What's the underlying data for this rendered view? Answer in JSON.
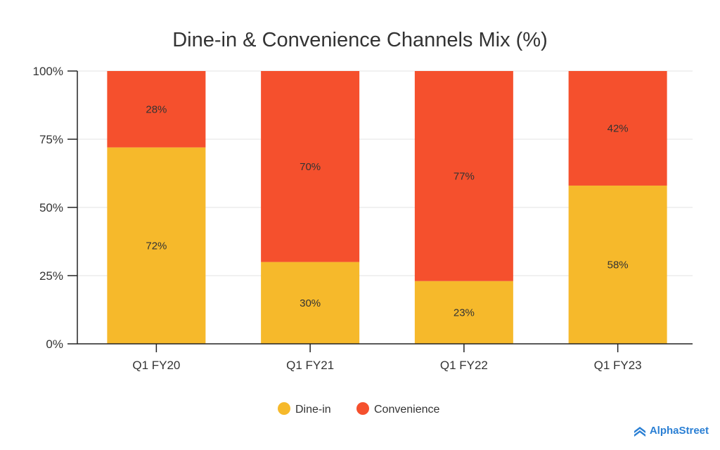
{
  "chart_data": {
    "type": "bar",
    "stacked": true,
    "title": "Dine-in & Convenience Channels Mix (%)",
    "xlabel": "",
    "ylabel": "",
    "categories": [
      "Q1 FY20",
      "Q1 FY21",
      "Q1 FY22",
      "Q1 FY23"
    ],
    "series": [
      {
        "name": "Dine-in",
        "color": "#F6B92B",
        "values": [
          72,
          30,
          23,
          58
        ],
        "labels": [
          "72%",
          "30%",
          "23%",
          "58%"
        ]
      },
      {
        "name": "Convenience",
        "color": "#F5502D",
        "values": [
          28,
          70,
          77,
          42
        ],
        "labels": [
          "28%",
          "70%",
          "77%",
          "42%"
        ]
      }
    ],
    "ylim": [
      0,
      100
    ],
    "yticks": [
      0,
      25,
      50,
      75,
      100
    ],
    "ytick_labels": [
      "0%",
      "25%",
      "50%",
      "75%",
      "100%"
    ],
    "grid": true,
    "legend_position": "bottom-center"
  },
  "brand": {
    "name": "AlphaStreet",
    "color": "#2A7FD4"
  }
}
